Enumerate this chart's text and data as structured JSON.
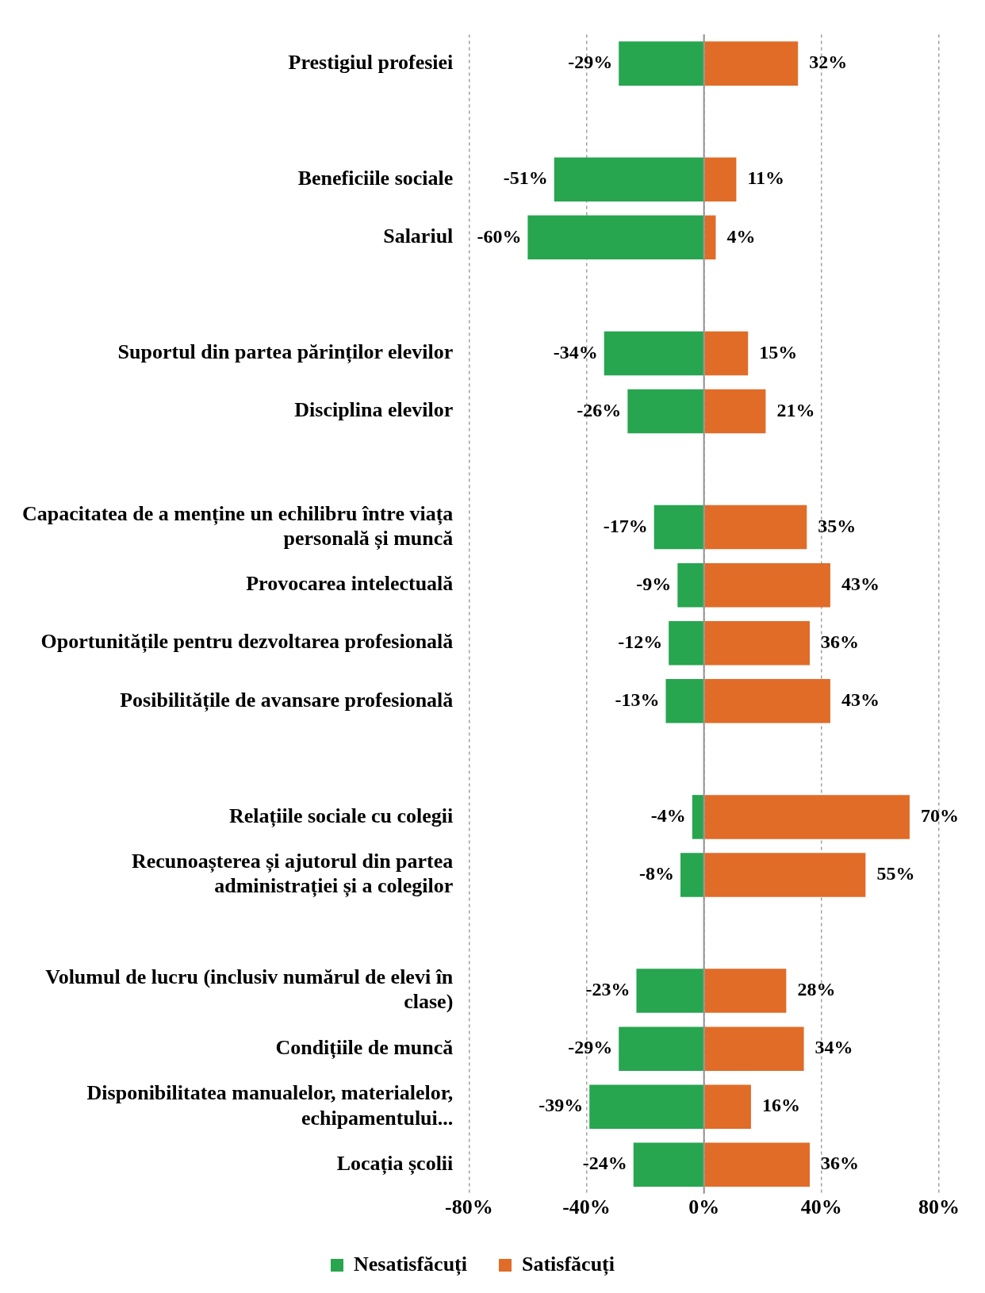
{
  "chart_data": {
    "type": "bar",
    "orientation": "horizontal",
    "stacked": true,
    "categories": [
      "Prestigiul profesiei",
      null,
      "Beneficiile sociale",
      "Salariul",
      null,
      "Suportul din partea părinților elevilor",
      "Disciplina elevilor",
      null,
      "Capacitatea de a menține un echilibru între viața personală și muncă",
      "Provocarea intelectuală",
      "Oportunitățile pentru dezvoltarea profesională",
      "Posibilitățile de avansare profesională",
      null,
      "Relațiile sociale cu colegii",
      "Recunoașterea și ajutorul din partea administrației și a colegilor",
      null,
      "Volumul de lucru (inclusiv numărul de elevi în clase)",
      "Condițiile de muncă",
      "Disponibilitatea manualelor, materialelor, echipamentului...",
      "Locația școlii"
    ],
    "series": [
      {
        "name": "Nesatisfăcuți",
        "color": "#27a54f",
        "values": [
          -29,
          null,
          -51,
          -60,
          null,
          -34,
          -26,
          null,
          -17,
          -9,
          -12,
          -13,
          null,
          -4,
          -8,
          null,
          -23,
          -29,
          -39,
          -24
        ],
        "value_labels": [
          "-29%",
          null,
          "-51%",
          "-60%",
          null,
          "-34%",
          "-26%",
          null,
          "-17%",
          "-9%",
          "-12%",
          "-13%",
          null,
          "-4%",
          "-8%",
          null,
          "-23%",
          "-29%",
          "-39%",
          "-24%"
        ]
      },
      {
        "name": "Satisfăcuți",
        "color": "#e06c28",
        "values": [
          32,
          null,
          11,
          4,
          null,
          15,
          21,
          null,
          35,
          43,
          36,
          43,
          null,
          70,
          55,
          null,
          28,
          34,
          16,
          36
        ],
        "value_labels": [
          "32%",
          null,
          "11%",
          "4%",
          null,
          "15%",
          "21%",
          null,
          "35%",
          "43%",
          "36%",
          "43%",
          null,
          "70%",
          "55%",
          null,
          "28%",
          "34%",
          "16%",
          "36%"
        ]
      }
    ],
    "xlim": [
      -80,
      80
    ],
    "xticks": [
      {
        "value": -80,
        "label": "-80%"
      },
      {
        "value": -40,
        "label": "-40%"
      },
      {
        "value": 0,
        "label": "0%"
      },
      {
        "value": 40,
        "label": "40%"
      },
      {
        "value": 80,
        "label": "80%"
      }
    ],
    "grid": "x",
    "legend": "bottom"
  }
}
